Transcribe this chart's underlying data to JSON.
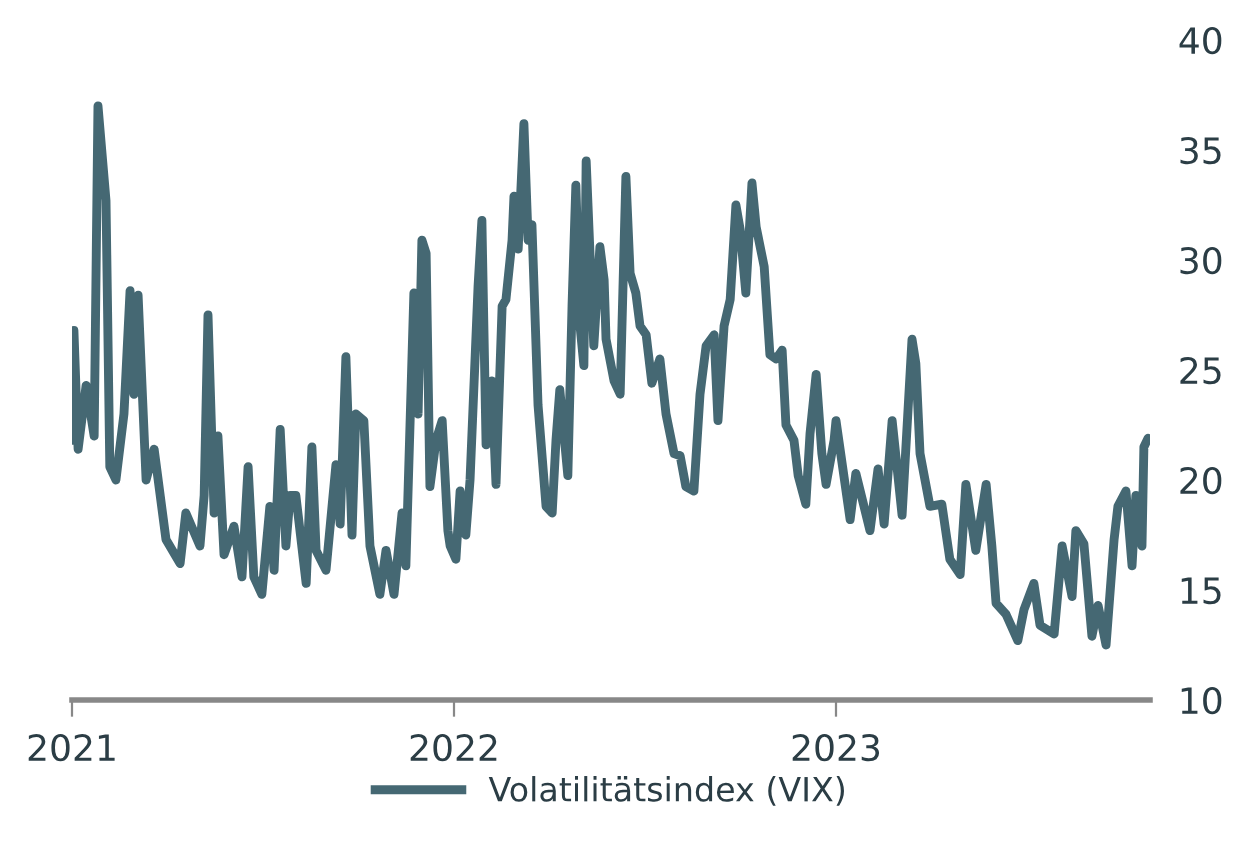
{
  "chart_data": {
    "type": "line",
    "x": [
      2021.0,
      2021.005,
      2021.016,
      2021.037,
      2021.058,
      2021.068,
      2021.089,
      2021.099,
      2021.115,
      2021.136,
      2021.152,
      2021.162,
      2021.173,
      2021.194,
      2021.215,
      2021.246,
      2021.283,
      2021.298,
      2021.335,
      2021.346,
      2021.356,
      2021.372,
      2021.382,
      2021.398,
      2021.424,
      2021.445,
      2021.461,
      2021.476,
      2021.497,
      2021.518,
      2021.529,
      2021.545,
      2021.56,
      2021.571,
      2021.586,
      2021.613,
      2021.628,
      2021.639,
      2021.665,
      2021.691,
      2021.702,
      2021.717,
      2021.733,
      2021.743,
      2021.764,
      2021.78,
      2021.806,
      2021.822,
      2021.843,
      2021.864,
      2021.874,
      2021.895,
      2021.906,
      2021.916,
      2021.927,
      2021.937,
      2021.953,
      2021.969,
      2021.984,
      2021.99,
      2022.005,
      2022.016,
      2022.031,
      2022.042,
      2022.063,
      2022.073,
      2022.084,
      2022.099,
      2022.11,
      2022.126,
      2022.136,
      2022.152,
      2022.157,
      2022.168,
      2022.183,
      2022.194,
      2022.204,
      2022.22,
      2022.241,
      2022.257,
      2022.267,
      2022.277,
      2022.298,
      2022.309,
      2022.319,
      2022.33,
      2022.34,
      2022.346,
      2022.366,
      2022.382,
      2022.393,
      2022.398,
      2022.419,
      2022.435,
      2022.45,
      2022.461,
      2022.476,
      2022.487,
      2022.503,
      2022.518,
      2022.539,
      2022.555,
      2022.576,
      2022.592,
      2022.607,
      2022.628,
      2022.644,
      2022.66,
      2022.681,
      2022.691,
      2022.707,
      2022.723,
      2022.738,
      2022.749,
      2022.764,
      2022.78,
      2022.791,
      2022.812,
      2022.827,
      2022.843,
      2022.859,
      2022.869,
      2022.89,
      2022.901,
      2022.921,
      2022.932,
      2022.948,
      2022.963,
      2022.974,
      2022.995,
      2023.0,
      2023.037,
      2023.052,
      2023.089,
      2023.11,
      2023.126,
      2023.147,
      2023.173,
      2023.199,
      2023.209,
      2023.22,
      2023.246,
      2023.277,
      2023.298,
      2023.325,
      2023.34,
      2023.366,
      2023.393,
      2023.408,
      2023.419,
      2023.445,
      2023.476,
      2023.492,
      2023.518,
      2023.534,
      2023.571,
      2023.592,
      2023.618,
      2023.628,
      2023.649,
      2023.67,
      2023.686,
      2023.707,
      2023.728,
      2023.738,
      2023.759,
      2023.775,
      2023.785,
      2023.801,
      2023.806,
      2023.817
    ],
    "series": [
      {
        "name": "Volatilitätsindex (VIX)",
        "color": "#456873",
        "values": [
          21.8,
          26.8,
          21.4,
          24.3,
          22.0,
          37.0,
          32.7,
          20.6,
          20.0,
          23.0,
          28.6,
          23.9,
          28.4,
          20.0,
          21.4,
          17.3,
          16.2,
          18.5,
          17.0,
          19.3,
          27.5,
          18.5,
          22.0,
          16.6,
          17.9,
          15.6,
          20.6,
          15.6,
          14.8,
          18.8,
          15.9,
          22.3,
          17.0,
          19.3,
          19.3,
          15.3,
          21.5,
          16.8,
          15.9,
          20.7,
          18.0,
          25.6,
          17.5,
          23.0,
          22.7,
          17.0,
          14.8,
          16.8,
          14.8,
          18.5,
          16.1,
          28.5,
          23.0,
          30.9,
          30.3,
          19.7,
          21.8,
          22.7,
          17.7,
          17.0,
          16.4,
          19.5,
          17.5,
          20.0,
          28.8,
          31.8,
          21.6,
          24.5,
          19.8,
          27.9,
          28.2,
          30.9,
          32.9,
          30.5,
          36.2,
          30.9,
          31.6,
          23.4,
          18.8,
          18.5,
          21.8,
          24.1,
          20.2,
          27.9,
          33.4,
          27.0,
          25.2,
          34.5,
          26.1,
          30.6,
          29.1,
          26.4,
          24.5,
          23.9,
          33.8,
          29.4,
          28.5,
          27.0,
          26.6,
          24.4,
          25.5,
          23.0,
          21.2,
          21.1,
          19.7,
          19.5,
          23.9,
          26.1,
          26.6,
          22.7,
          27.0,
          28.2,
          32.5,
          31.4,
          28.5,
          33.5,
          31.5,
          29.7,
          25.7,
          25.5,
          25.9,
          22.5,
          21.8,
          20.2,
          18.9,
          22.1,
          24.8,
          21.2,
          19.8,
          21.8,
          22.7,
          18.2,
          20.3,
          17.7,
          20.5,
          18.0,
          22.7,
          18.4,
          26.4,
          25.3,
          21.2,
          18.8,
          18.9,
          16.4,
          15.7,
          19.8,
          16.8,
          19.8,
          17.0,
          14.4,
          13.9,
          12.7,
          14.1,
          15.3,
          13.4,
          13.0,
          17.0,
          14.7,
          17.7,
          17.1,
          12.9,
          14.3,
          12.5,
          17.3,
          18.8,
          19.5,
          16.1,
          19.3,
          17.0,
          21.5,
          21.9
        ]
      }
    ],
    "xlim": [
      2021.0,
      2023.822
    ],
    "xticks": [
      2021,
      2022,
      2023
    ],
    "ylim": [
      10,
      40
    ],
    "yticks": [
      10,
      15,
      20,
      25,
      30,
      35,
      40
    ],
    "legend": "bottom",
    "grid": false,
    "line_style": "solid"
  }
}
